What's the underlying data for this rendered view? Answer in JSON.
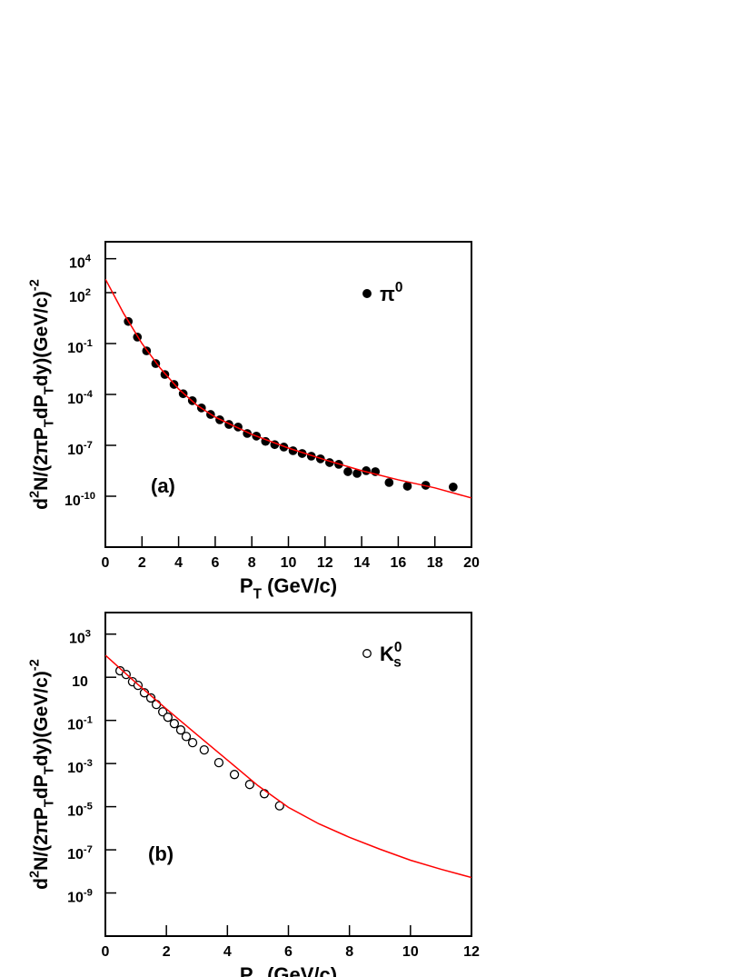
{
  "chart_data": [
    {
      "type": "scatter",
      "annotation": "(a)",
      "x_label": "P_{T} (GeV/c)",
      "y_label": "d^{2}N/(2πP_{T}dP_{T}dy)(GeV/c)^{-2}",
      "xlim": [
        0,
        20
      ],
      "xticks": [
        0,
        2,
        4,
        6,
        8,
        10,
        12,
        14,
        16,
        18,
        20
      ],
      "log_y": true,
      "ylim": [
        1e-13,
        100000
      ],
      "yticks": [
        {
          "value": 1e-10,
          "label": "10^{-10}"
        },
        {
          "value": 1e-07,
          "label": "10^{-7}"
        },
        {
          "value": 0.0001,
          "label": "10^{-4}"
        },
        {
          "value": 0.1,
          "label": "10^{-1}"
        },
        {
          "value": 100,
          "label": "10^{2}"
        },
        {
          "value": 10000,
          "label": "10^{4}"
        }
      ],
      "legend": "top-right",
      "series": [
        {
          "name": "π^{0}",
          "type": "scatter",
          "marker": "filled",
          "color": "#000000",
          "x": [
            1.25,
            1.75,
            2.25,
            2.75,
            3.25,
            3.75,
            4.25,
            4.75,
            5.25,
            5.75,
            6.25,
            6.75,
            7.25,
            7.75,
            8.25,
            8.75,
            9.25,
            9.75,
            10.25,
            10.75,
            11.25,
            11.75,
            12.25,
            12.75,
            13.25,
            13.75,
            14.25,
            14.75,
            15.5,
            16.5,
            17.5,
            19.0
          ],
          "values": [
            2.0,
            0.24,
            0.037,
            0.0066,
            0.0015,
            0.00039,
            0.00011,
            4.3e-05,
            1.6e-05,
            6.6e-06,
            3.2e-06,
            1.7e-06,
            1.2e-06,
            5e-07,
            3.5e-07,
            1.7e-07,
            1.1e-07,
            7.9e-08,
            4.8e-08,
            3.3e-08,
            2.3e-08,
            1.6e-08,
            9.6e-09,
            7.6e-09,
            2.8e-09,
            2.2e-09,
            3.2e-09,
            2.8e-09,
            6.4e-10,
            3.9e-10,
            4.4e-10,
            3.5e-10
          ]
        },
        {
          "type": "line",
          "color": "#ff0000",
          "x": [
            0,
            1,
            2,
            3,
            4,
            5,
            6,
            8,
            10,
            12,
            14,
            16,
            18,
            20
          ],
          "values": [
            630,
            5.9,
            0.1,
            0.0035,
            0.00021,
            2.3e-05,
            4.6e-06,
            4.4e-07,
            6.9e-08,
            1.4e-08,
            3.2e-09,
            9.3e-10,
            3.1e-10,
            7.9e-11
          ]
        }
      ]
    },
    {
      "type": "scatter",
      "annotation": "(b)",
      "x_label": "P_{T} (GeV/c)",
      "y_label": "d^{2}N/(2πP_{T}dP_{T}dy)(GeV/c)^{-2}",
      "xlim": [
        0,
        12
      ],
      "xticks": [
        0,
        2,
        4,
        6,
        8,
        10,
        12
      ],
      "log_y": true,
      "ylim": [
        1e-11,
        10000
      ],
      "yticks": [
        {
          "value": 1e-09,
          "label": "10^{-9}"
        },
        {
          "value": 1e-07,
          "label": "10^{-7}"
        },
        {
          "value": 1e-05,
          "label": "10^{-5}"
        },
        {
          "value": 0.001,
          "label": "10^{-3}"
        },
        {
          "value": 0.1,
          "label": "10^{-1}"
        },
        10,
        {
          "value": 1000,
          "label": "10^{3}"
        }
      ],
      "legend": "top-right",
      "series": [
        {
          "name": "K^{0}_{s}",
          "type": "scatter",
          "marker": "open",
          "color": "#000000",
          "x": [
            0.48,
            0.68,
            0.89,
            1.07,
            1.28,
            1.49,
            1.67,
            1.88,
            2.05,
            2.26,
            2.47,
            2.65,
            2.86,
            3.24,
            3.72,
            4.23,
            4.73,
            5.21,
            5.71
          ],
          "values": [
            20,
            13.5,
            6.2,
            4.2,
            1.9,
            1.1,
            0.55,
            0.25,
            0.14,
            0.071,
            0.036,
            0.018,
            0.0093,
            0.0043,
            0.0011,
            0.00031,
            0.000107,
            4e-05,
            1.1e-05
          ]
        },
        {
          "type": "line",
          "color": "#ff0000",
          "x": [
            0,
            1,
            2,
            3,
            4,
            5,
            6,
            7,
            8,
            9,
            10,
            11,
            12
          ],
          "values": [
            105,
            5.6,
            0.34,
            0.022,
            0.00145,
            9.5e-05,
            9.3e-06,
            1.6e-06,
            3.8e-07,
            1.07e-07,
            3.3e-08,
            1.26e-08,
            5.2e-09
          ]
        }
      ]
    }
  ]
}
